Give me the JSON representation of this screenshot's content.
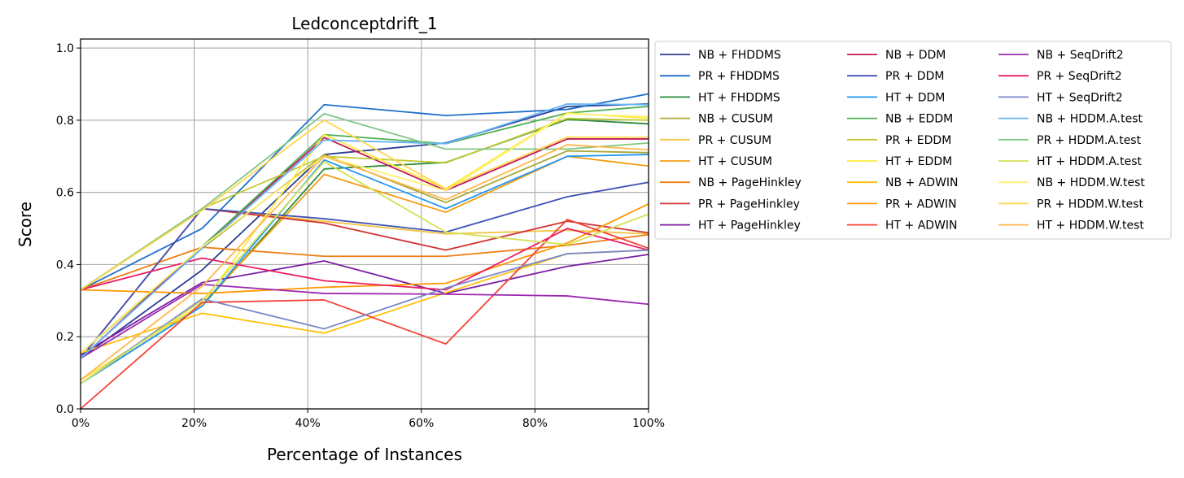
{
  "chart_data": {
    "type": "line",
    "title": "Ledconceptdrift_1",
    "xlabel": "Percentage of Instances",
    "ylabel": "Score",
    "x": [
      0,
      21.4,
      42.9,
      64.3,
      85.7,
      100
    ],
    "xlim": [
      0,
      100
    ],
    "ylim": [
      0,
      1.025
    ],
    "x_ticks": [
      {
        "value": 0,
        "label": "0%"
      },
      {
        "value": 20,
        "label": "20%"
      },
      {
        "value": 40,
        "label": "40%"
      },
      {
        "value": 60,
        "label": "60%"
      },
      {
        "value": 80,
        "label": "80%"
      },
      {
        "value": 100,
        "label": "100%"
      }
    ],
    "y_ticks": [
      {
        "value": 0.0,
        "label": "0.0"
      },
      {
        "value": 0.2,
        "label": "0.2"
      },
      {
        "value": 0.4,
        "label": "0.4"
      },
      {
        "value": 0.6,
        "label": "0.6"
      },
      {
        "value": 0.8,
        "label": "0.8"
      },
      {
        "value": 1.0,
        "label": "1.0"
      }
    ],
    "grid": true,
    "legend_position": "outside-right",
    "legend_columns": 3,
    "series": [
      {
        "name": "NB + FHDDMS",
        "color": "#2c3e94",
        "values": [
          0.14,
          0.385,
          0.705,
          0.737,
          0.838,
          0.845
        ]
      },
      {
        "name": "PR + FHDDMS",
        "color": "#1f6fc9",
        "values": [
          0.33,
          0.5,
          0.843,
          0.813,
          0.83,
          0.873
        ]
      },
      {
        "name": "HT + FHDDMS",
        "color": "#2e8b3a",
        "values": [
          0.07,
          0.285,
          0.665,
          0.683,
          0.802,
          0.79
        ]
      },
      {
        "name": "NB + CUSUM",
        "color": "#a8a83a",
        "values": [
          0.155,
          0.445,
          0.705,
          0.572,
          0.715,
          0.71
        ]
      },
      {
        "name": "PR + CUSUM",
        "color": "#f4c542",
        "values": [
          0.33,
          0.555,
          0.52,
          0.485,
          0.495,
          0.485
        ]
      },
      {
        "name": "HT + CUSUM",
        "color": "#f39c12",
        "values": [
          0.08,
          0.29,
          0.65,
          0.545,
          0.7,
          0.673
        ]
      },
      {
        "name": "NB + PageHinkley",
        "color": "#ee7d12",
        "values": [
          0.33,
          0.448,
          0.423,
          0.423,
          0.453,
          0.483
        ]
      },
      {
        "name": "PR + PageHinkley",
        "color": "#d03434",
        "values": [
          0.14,
          0.555,
          0.515,
          0.44,
          0.52,
          0.488
        ]
      },
      {
        "name": "HT + PageHinkley",
        "color": "#7b1fa2",
        "values": [
          0.15,
          0.35,
          0.41,
          0.32,
          0.395,
          0.428
        ]
      },
      {
        "name": "NB + DDM",
        "color": "#c2185b",
        "values": [
          0.14,
          0.45,
          0.752,
          0.605,
          0.748,
          0.748
        ]
      },
      {
        "name": "PR + DDM",
        "color": "#3f51b5",
        "values": [
          0.14,
          0.555,
          0.527,
          0.49,
          0.588,
          0.628
        ]
      },
      {
        "name": "HT + DDM",
        "color": "#2196f3",
        "values": [
          0.07,
          0.285,
          0.69,
          0.555,
          0.7,
          0.705
        ]
      },
      {
        "name": "NB + EDDM",
        "color": "#4caf50",
        "values": [
          0.155,
          0.45,
          0.76,
          0.735,
          0.82,
          0.838
        ]
      },
      {
        "name": "PR + EDDM",
        "color": "#c0ca33",
        "values": [
          0.33,
          0.555,
          0.7,
          0.682,
          0.805,
          0.8
        ]
      },
      {
        "name": "HT + EDDM",
        "color": "#ffeb3b",
        "values": [
          0.08,
          0.29,
          0.76,
          0.61,
          0.82,
          0.805
        ]
      },
      {
        "name": "NB + ADWIN",
        "color": "#ffc107",
        "values": [
          0.155,
          0.265,
          0.21,
          0.322,
          0.43,
          0.44
        ]
      },
      {
        "name": "PR + ADWIN",
        "color": "#ff9800",
        "values": [
          0.33,
          0.32,
          0.337,
          0.348,
          0.46,
          0.568
        ]
      },
      {
        "name": "HT + ADWIN",
        "color": "#f44336",
        "values": [
          0.0,
          0.295,
          0.302,
          0.18,
          0.525,
          0.445
        ]
      },
      {
        "name": "NB + SeqDrift2",
        "color": "#9c27b0",
        "values": [
          0.14,
          0.345,
          0.32,
          0.318,
          0.313,
          0.29
        ]
      },
      {
        "name": "PR + SeqDrift2",
        "color": "#e91e63",
        "values": [
          0.33,
          0.418,
          0.355,
          0.33,
          0.5,
          0.44
        ]
      },
      {
        "name": "HT + SeqDrift2",
        "color": "#7986cb",
        "values": [
          0.07,
          0.305,
          0.222,
          0.335,
          0.43,
          0.44
        ]
      },
      {
        "name": "NB + HDDM.A.test",
        "color": "#64b5f6",
        "values": [
          0.14,
          0.445,
          0.745,
          0.735,
          0.845,
          0.843
        ]
      },
      {
        "name": "PR + HDDM.A.test",
        "color": "#81c784",
        "values": [
          0.33,
          0.555,
          0.818,
          0.72,
          0.72,
          0.737
        ]
      },
      {
        "name": "HT + HDDM.A.test",
        "color": "#d4e157",
        "values": [
          0.07,
          0.3,
          0.685,
          0.49,
          0.455,
          0.54
        ]
      },
      {
        "name": "NB + HDDM.W.test",
        "color": "#fff176",
        "values": [
          0.155,
          0.45,
          0.7,
          0.605,
          0.818,
          0.81
        ]
      },
      {
        "name": "PR + HDDM.W.test",
        "color": "#ffd54f",
        "values": [
          0.33,
          0.55,
          0.8,
          0.61,
          0.753,
          0.753
        ]
      },
      {
        "name": "HT + HDDM.W.test",
        "color": "#ffb74d",
        "values": [
          0.08,
          0.34,
          0.7,
          0.58,
          0.732,
          0.718
        ]
      }
    ]
  }
}
